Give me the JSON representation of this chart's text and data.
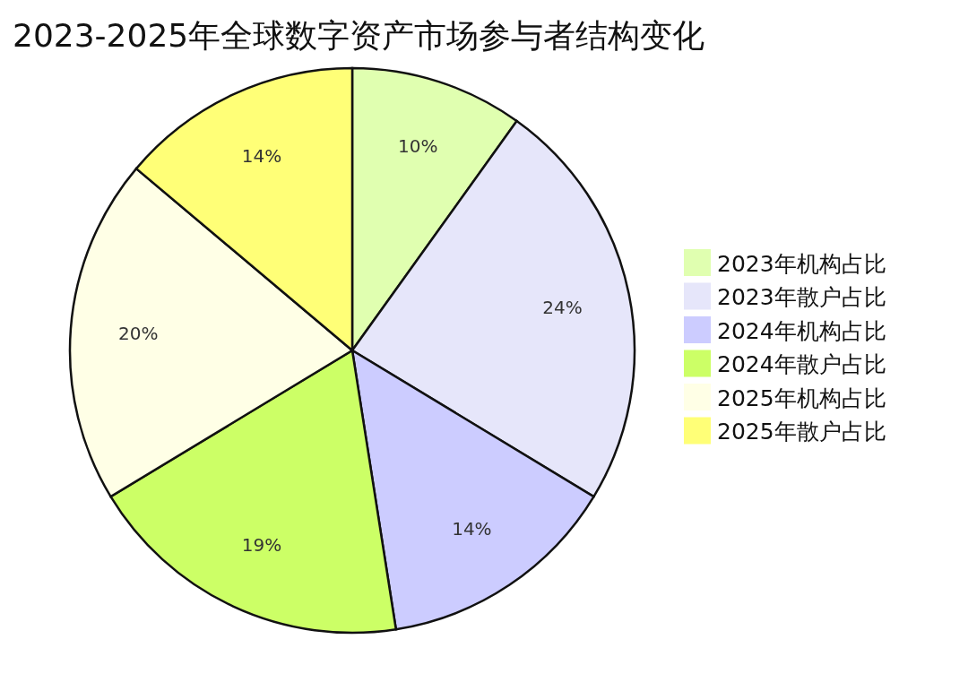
{
  "chart_data": {
    "type": "pie",
    "title": "2023-2025年全球数字资产市场参与者结构变化",
    "categories": [
      "2023年机构占比",
      "2023年散户占比",
      "2024年机构占比",
      "2024年散户占比",
      "2025年机构占比",
      "2025年散户占比"
    ],
    "values": [
      10,
      24,
      14,
      19,
      20,
      14
    ],
    "value_labels": [
      "10%",
      "24%",
      "14%",
      "19%",
      "20%",
      "14%"
    ],
    "colors": [
      "#e0ffb0",
      "#e6e6fa",
      "#ccccff",
      "#ccff66",
      "#ffffe6",
      "#ffff77"
    ],
    "legend": "right"
  }
}
